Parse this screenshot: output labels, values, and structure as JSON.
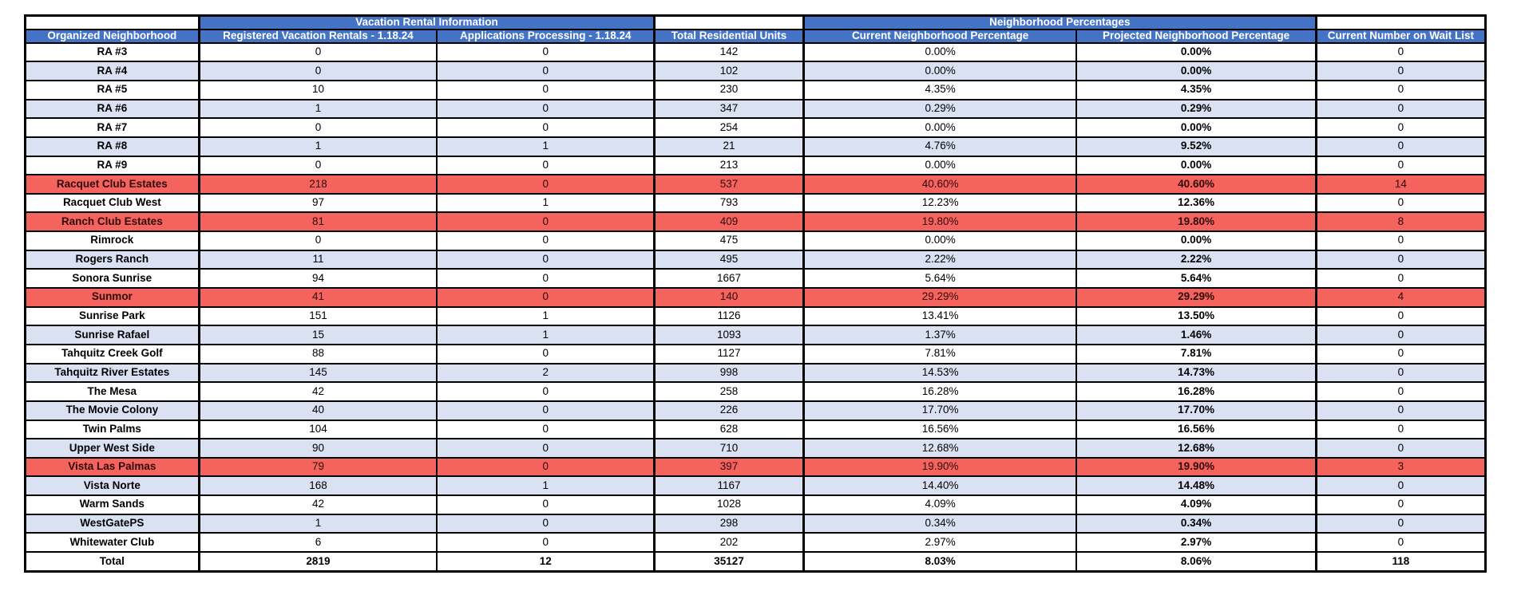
{
  "colors": {
    "header_blue": "#4472C4",
    "stripe_blue": "#D9E1F2",
    "highlight_red": "#F4635D",
    "border_black": "#000000",
    "header_text": "#FFFFFF",
    "highlight_text": "#2F0909"
  },
  "table": {
    "group_headers": {
      "vacation_rental": "Vacation Rental Information",
      "neighborhood_percentages": "Neighborhood Percentages"
    },
    "columns": [
      "Organized Neighborhood",
      "Registered Vacation Rentals - 1.18.24",
      "Applications Processing - 1.18.24",
      "Total Residential Units",
      "Current Neighborhood Percentage",
      "Projected Neighborhood Percentage",
      "Current Number on Wait List"
    ],
    "rows": [
      {
        "name": "RA #3",
        "registered": "0",
        "processing": "0",
        "units": "142",
        "current": "0.00%",
        "projected": "0.00%",
        "waitlist": "0",
        "highlight": false
      },
      {
        "name": "RA #4",
        "registered": "0",
        "processing": "0",
        "units": "102",
        "current": "0.00%",
        "projected": "0.00%",
        "waitlist": "0",
        "highlight": false
      },
      {
        "name": "RA #5",
        "registered": "10",
        "processing": "0",
        "units": "230",
        "current": "4.35%",
        "projected": "4.35%",
        "waitlist": "0",
        "highlight": false
      },
      {
        "name": "RA #6",
        "registered": "1",
        "processing": "0",
        "units": "347",
        "current": "0.29%",
        "projected": "0.29%",
        "waitlist": "0",
        "highlight": false
      },
      {
        "name": "RA #7",
        "registered": "0",
        "processing": "0",
        "units": "254",
        "current": "0.00%",
        "projected": "0.00%",
        "waitlist": "0",
        "highlight": false
      },
      {
        "name": "RA #8",
        "registered": "1",
        "processing": "1",
        "units": "21",
        "current": "4.76%",
        "projected": "9.52%",
        "waitlist": "0",
        "highlight": false
      },
      {
        "name": "RA #9",
        "registered": "0",
        "processing": "0",
        "units": "213",
        "current": "0.00%",
        "projected": "0.00%",
        "waitlist": "0",
        "highlight": false
      },
      {
        "name": "Racquet Club Estates",
        "registered": "218",
        "processing": "0",
        "units": "537",
        "current": "40.60%",
        "projected": "40.60%",
        "waitlist": "14",
        "highlight": true
      },
      {
        "name": "Racquet Club West",
        "registered": "97",
        "processing": "1",
        "units": "793",
        "current": "12.23%",
        "projected": "12.36%",
        "waitlist": "0",
        "highlight": false
      },
      {
        "name": "Ranch Club Estates",
        "registered": "81",
        "processing": "0",
        "units": "409",
        "current": "19.80%",
        "projected": "19.80%",
        "waitlist": "8",
        "highlight": true
      },
      {
        "name": "Rimrock",
        "registered": "0",
        "processing": "0",
        "units": "475",
        "current": "0.00%",
        "projected": "0.00%",
        "waitlist": "0",
        "highlight": false
      },
      {
        "name": "Rogers Ranch",
        "registered": "11",
        "processing": "0",
        "units": "495",
        "current": "2.22%",
        "projected": "2.22%",
        "waitlist": "0",
        "highlight": false
      },
      {
        "name": "Sonora Sunrise",
        "registered": "94",
        "processing": "0",
        "units": "1667",
        "current": "5.64%",
        "projected": "5.64%",
        "waitlist": "0",
        "highlight": false
      },
      {
        "name": "Sunmor",
        "registered": "41",
        "processing": "0",
        "units": "140",
        "current": "29.29%",
        "projected": "29.29%",
        "waitlist": "4",
        "highlight": true
      },
      {
        "name": "Sunrise Park",
        "registered": "151",
        "processing": "1",
        "units": "1126",
        "current": "13.41%",
        "projected": "13.50%",
        "waitlist": "0",
        "highlight": false
      },
      {
        "name": "Sunrise Rafael",
        "registered": "15",
        "processing": "1",
        "units": "1093",
        "current": "1.37%",
        "projected": "1.46%",
        "waitlist": "0",
        "highlight": false
      },
      {
        "name": "Tahquitz Creek Golf",
        "registered": "88",
        "processing": "0",
        "units": "1127",
        "current": "7.81%",
        "projected": "7.81%",
        "waitlist": "0",
        "highlight": false
      },
      {
        "name": "Tahquitz River Estates",
        "registered": "145",
        "processing": "2",
        "units": "998",
        "current": "14.53%",
        "projected": "14.73%",
        "waitlist": "0",
        "highlight": false
      },
      {
        "name": "The Mesa",
        "registered": "42",
        "processing": "0",
        "units": "258",
        "current": "16.28%",
        "projected": "16.28%",
        "waitlist": "0",
        "highlight": false
      },
      {
        "name": "The Movie Colony",
        "registered": "40",
        "processing": "0",
        "units": "226",
        "current": "17.70%",
        "projected": "17.70%",
        "waitlist": "0",
        "highlight": false
      },
      {
        "name": "Twin Palms",
        "registered": "104",
        "processing": "0",
        "units": "628",
        "current": "16.56%",
        "projected": "16.56%",
        "waitlist": "0",
        "highlight": false
      },
      {
        "name": "Upper West Side",
        "registered": "90",
        "processing": "0",
        "units": "710",
        "current": "12.68%",
        "projected": "12.68%",
        "waitlist": "0",
        "highlight": false
      },
      {
        "name": "Vista Las Palmas",
        "registered": "79",
        "processing": "0",
        "units": "397",
        "current": "19.90%",
        "projected": "19.90%",
        "waitlist": "3",
        "highlight": true
      },
      {
        "name": "Vista Norte",
        "registered": "168",
        "processing": "1",
        "units": "1167",
        "current": "14.40%",
        "projected": "14.48%",
        "waitlist": "0",
        "highlight": false
      },
      {
        "name": "Warm Sands",
        "registered": "42",
        "processing": "0",
        "units": "1028",
        "current": "4.09%",
        "projected": "4.09%",
        "waitlist": "0",
        "highlight": false
      },
      {
        "name": "WestGatePS",
        "registered": "1",
        "processing": "0",
        "units": "298",
        "current": "0.34%",
        "projected": "0.34%",
        "waitlist": "0",
        "highlight": false
      },
      {
        "name": "Whitewater Club",
        "registered": "6",
        "processing": "0",
        "units": "202",
        "current": "2.97%",
        "projected": "2.97%",
        "waitlist": "0",
        "highlight": false
      }
    ],
    "total_row": {
      "name": "Total",
      "registered": "2819",
      "processing": "12",
      "units": "35127",
      "current": "8.03%",
      "projected": "8.06%",
      "waitlist": "118"
    }
  }
}
